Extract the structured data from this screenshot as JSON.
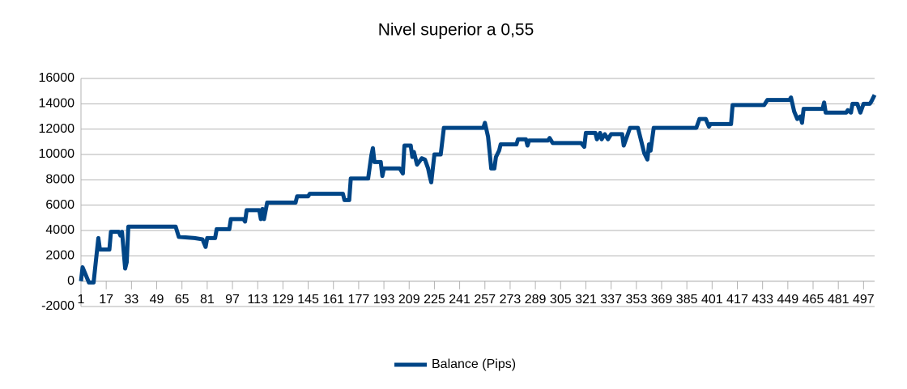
{
  "chart_data": {
    "type": "line",
    "title": "Nivel superior a 0,55",
    "x": [
      1,
      2,
      4,
      6,
      9,
      12,
      13,
      19,
      20,
      25,
      26,
      27,
      29,
      30,
      31,
      61,
      63,
      73,
      78,
      80,
      81,
      86,
      87,
      95,
      96,
      104,
      105,
      106,
      114,
      115,
      116,
      117,
      119,
      137,
      138,
      145,
      146,
      167,
      168,
      171,
      172,
      183,
      185,
      186,
      187,
      191,
      192,
      193,
      203,
      205,
      206,
      210,
      211,
      212,
      214,
      217,
      219,
      221,
      222,
      223,
      225,
      229,
      231,
      256,
      257,
      259,
      260,
      261,
      263,
      264,
      266,
      267,
      277,
      278,
      283,
      284,
      285,
      297,
      298,
      300,
      318,
      320,
      321,
      327,
      328,
      330,
      331,
      333,
      335,
      337,
      344,
      345,
      347,
      349,
      354,
      356,
      358,
      360,
      361,
      362,
      364,
      391,
      393,
      397,
      399,
      400,
      413,
      414,
      434,
      436,
      450,
      451,
      453,
      455,
      457,
      458,
      459,
      471,
      472,
      473,
      486,
      487,
      489,
      490,
      493,
      495,
      497,
      501,
      502,
      504
    ],
    "series": [
      {
        "name": "Balance (Pips)",
        "color": "#004586",
        "values": [
          0,
          1100,
          500,
          -100,
          -100,
          3400,
          2500,
          2500,
          3900,
          3900,
          3600,
          3900,
          1000,
          1500,
          4300,
          4300,
          3500,
          3400,
          3300,
          2700,
          3400,
          3400,
          4100,
          4100,
          4900,
          4900,
          4700,
          5600,
          5600,
          4900,
          5700,
          4900,
          6200,
          6200,
          6700,
          6700,
          6900,
          6900,
          6400,
          6400,
          8100,
          8100,
          9900,
          10500,
          9400,
          9400,
          8300,
          8900,
          8900,
          8500,
          10700,
          10700,
          9800,
          10200,
          9200,
          9700,
          9600,
          8900,
          8300,
          7800,
          10000,
          10000,
          12100,
          12100,
          12500,
          11400,
          10200,
          8900,
          8900,
          9800,
          10300,
          10800,
          10800,
          11200,
          11200,
          10700,
          11100,
          11100,
          11300,
          10900,
          10900,
          10600,
          11700,
          11700,
          11200,
          11700,
          11200,
          11600,
          11200,
          11600,
          11600,
          10700,
          11400,
          12100,
          12100,
          11100,
          10100,
          9600,
          10800,
          10300,
          12100,
          12100,
          12800,
          12800,
          12200,
          12400,
          12400,
          13900,
          13900,
          14300,
          14300,
          14500,
          13400,
          12800,
          13000,
          12500,
          13600,
          13600,
          14100,
          13300,
          13300,
          13500,
          13300,
          14000,
          14000,
          13300,
          14000,
          14000,
          14200,
          14700
        ]
      }
    ],
    "xlim": [
      1,
      504
    ],
    "xticks": [
      1,
      17,
      33,
      49,
      65,
      81,
      97,
      113,
      129,
      145,
      161,
      177,
      193,
      209,
      225,
      241,
      257,
      273,
      289,
      305,
      321,
      337,
      353,
      369,
      385,
      401,
      417,
      433,
      449,
      465,
      481,
      497
    ],
    "ylim": [
      -2000,
      16000
    ],
    "yticks": [
      -2000,
      0,
      2000,
      4000,
      6000,
      8000,
      10000,
      12000,
      14000,
      16000
    ],
    "grid": true,
    "legend": "bottom"
  }
}
